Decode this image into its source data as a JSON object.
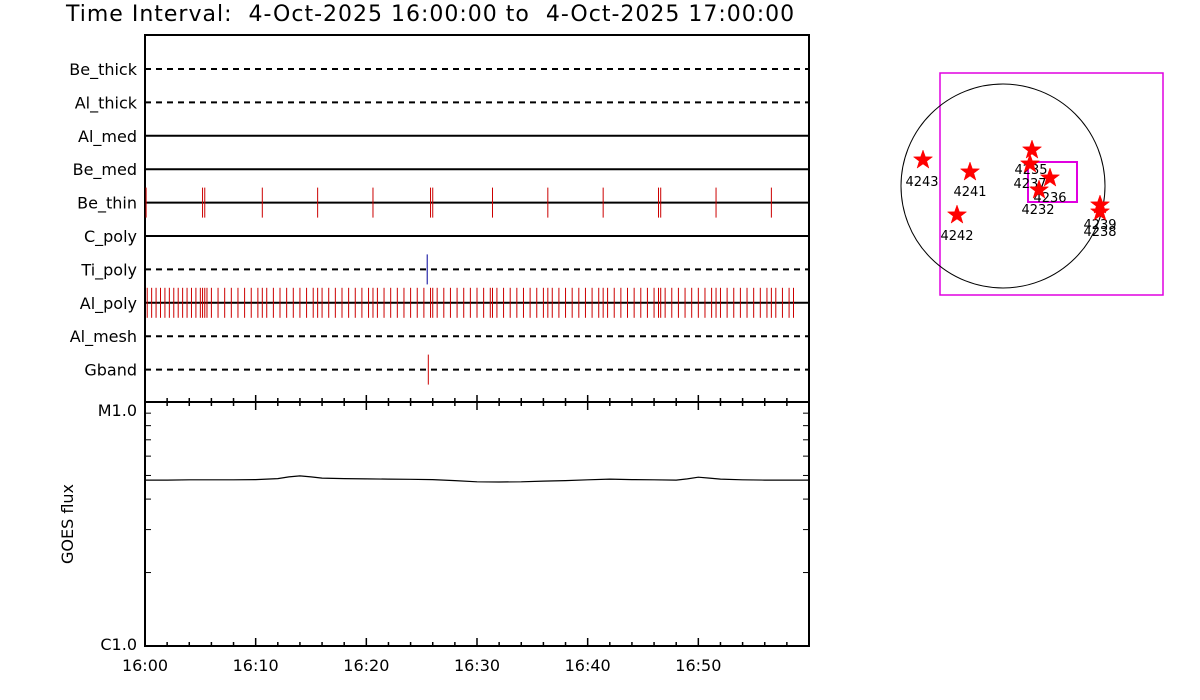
{
  "title": "Time Interval:  4-Oct-2025 16:00:00 to  4-Oct-2025 17:00:00",
  "chart_data": [
    {
      "type": "event-timeline",
      "x_start": "16:00",
      "x_end": "17:00",
      "x_ticks": [
        "16:00",
        "16:10",
        "16:20",
        "16:30",
        "16:40",
        "16:50"
      ],
      "channels": [
        {
          "name": "Be_thick",
          "style": "dashed",
          "events": []
        },
        {
          "name": "Al_thick",
          "style": "dashed",
          "events": []
        },
        {
          "name": "Al_med",
          "style": "solid",
          "events": []
        },
        {
          "name": "Be_med",
          "style": "solid",
          "events": []
        },
        {
          "name": "Be_thin",
          "style": "solid",
          "color": "#cc0000",
          "events": [
            0.1,
            5.2,
            5.4,
            10.6,
            15.6,
            20.6,
            25.8,
            26.0,
            31.4,
            36.4,
            41.4,
            46.4,
            46.6,
            51.6,
            56.6
          ]
        },
        {
          "name": "C_poly",
          "style": "solid",
          "events": []
        },
        {
          "name": "Ti_poly",
          "style": "dashed",
          "color": "#000099",
          "events": [
            25.5
          ]
        },
        {
          "name": "Al_poly",
          "style": "solid",
          "color": "#cc0000",
          "events": [
            0.2,
            0.6,
            1.0,
            1.4,
            1.8,
            2.2,
            2.6,
            3.0,
            3.4,
            3.8,
            4.2,
            4.6,
            5.0,
            5.2,
            5.4,
            5.6,
            6.0,
            6.6,
            7.2,
            7.8,
            8.4,
            9.0,
            9.6,
            10.2,
            10.6,
            11.0,
            11.6,
            12.2,
            12.8,
            13.4,
            14.0,
            14.6,
            15.2,
            15.6,
            16.0,
            16.6,
            17.2,
            17.8,
            18.4,
            19.0,
            19.6,
            20.2,
            20.6,
            21.0,
            21.6,
            22.2,
            22.8,
            23.4,
            24.0,
            24.6,
            25.2,
            25.8,
            26.0,
            26.4,
            27.0,
            27.6,
            28.2,
            28.8,
            29.4,
            30.0,
            30.6,
            31.2,
            31.4,
            31.8,
            32.4,
            33.0,
            33.6,
            34.2,
            34.8,
            35.4,
            36.0,
            36.4,
            36.8,
            37.4,
            38.0,
            38.6,
            39.2,
            39.8,
            40.4,
            41.0,
            41.4,
            41.8,
            42.4,
            43.0,
            43.6,
            44.2,
            44.8,
            45.4,
            46.0,
            46.4,
            46.6,
            47.0,
            47.6,
            48.2,
            48.8,
            49.4,
            50.0,
            50.6,
            51.2,
            51.6,
            52.0,
            52.6,
            53.2,
            53.8,
            54.4,
            55.0,
            55.6,
            56.2,
            56.6,
            57.0,
            57.6,
            58.2,
            58.6
          ]
        },
        {
          "name": "Al_mesh",
          "style": "dashed",
          "events": []
        },
        {
          "name": "Gband",
          "style": "dashed",
          "color": "#cc0000",
          "events": [
            25.6
          ]
        }
      ]
    },
    {
      "type": "line",
      "ylabel": "GOES flux",
      "y_ticks": [
        "M1.0",
        "C1.0"
      ],
      "y_scale": "log",
      "x": [
        0,
        2,
        4,
        6,
        8,
        10,
        12,
        13,
        14,
        15,
        16,
        18,
        20,
        22,
        24,
        26,
        28,
        30,
        32,
        34,
        36,
        38,
        40,
        42,
        44,
        46,
        48,
        49,
        50,
        51,
        52,
        54,
        56,
        58,
        60
      ],
      "values": [
        0.68,
        0.68,
        0.681,
        0.681,
        0.681,
        0.682,
        0.686,
        0.693,
        0.697,
        0.693,
        0.688,
        0.686,
        0.685,
        0.684,
        0.683,
        0.682,
        0.678,
        0.673,
        0.672,
        0.673,
        0.676,
        0.678,
        0.681,
        0.684,
        0.682,
        0.681,
        0.68,
        0.685,
        0.692,
        0.688,
        0.684,
        0.681,
        0.68,
        0.68,
        0.68
      ]
    },
    {
      "type": "map",
      "regions": [
        {
          "label": "4243"
        },
        {
          "label": "4241"
        },
        {
          "label": "4242"
        },
        {
          "label": "4235"
        },
        {
          "label": "4237"
        },
        {
          "label": "4236"
        },
        {
          "label": "4232"
        },
        {
          "label": "4239"
        },
        {
          "label": "4238"
        }
      ]
    }
  ]
}
